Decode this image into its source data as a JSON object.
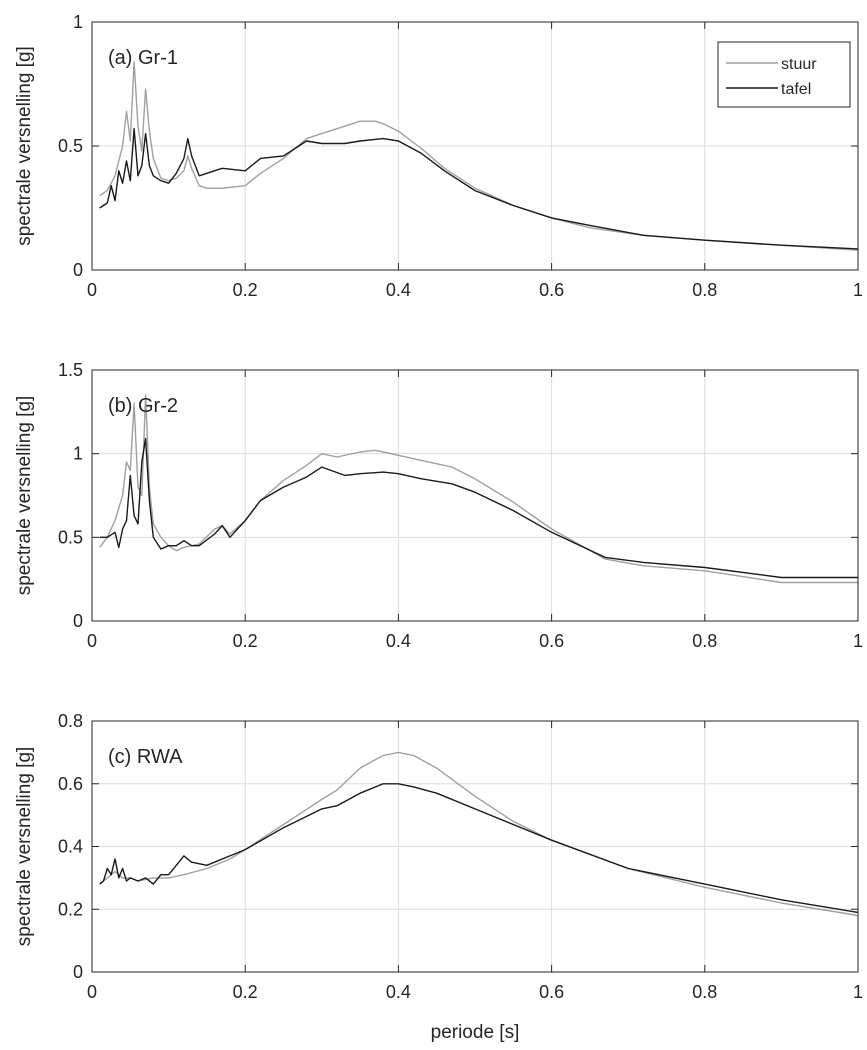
{
  "figure": {
    "xlabel": "periode [s]",
    "legend_entries": [
      "stuur",
      "tafel"
    ]
  },
  "colors": {
    "stuur": "#a0a0a0",
    "tafel": "#1a1a1a",
    "axes": "#262626",
    "grid": "#dcdcdc"
  },
  "chart_data": [
    {
      "type": "line",
      "annotation": "(a) Gr-1",
      "xlabel": "",
      "ylabel": "spectrale versnelling [g]",
      "xlim": [
        0,
        1
      ],
      "ylim": [
        0,
        1
      ],
      "xticks": [
        0,
        0.2,
        0.4,
        0.6,
        0.8,
        1
      ],
      "xtick_labels": [
        "0",
        "0.2",
        "0.4",
        "0.6",
        "0.8",
        "1"
      ],
      "yticks": [
        0,
        0.5,
        1
      ],
      "ytick_labels": [
        "0",
        "0.5",
        "1"
      ],
      "grid": true,
      "legend": "top-right",
      "series": [
        {
          "name": "stuur",
          "x": [
            0.01,
            0.02,
            0.03,
            0.04,
            0.045,
            0.05,
            0.055,
            0.06,
            0.065,
            0.07,
            0.075,
            0.08,
            0.09,
            0.1,
            0.11,
            0.12,
            0.125,
            0.13,
            0.14,
            0.15,
            0.17,
            0.2,
            0.22,
            0.25,
            0.28,
            0.3,
            0.33,
            0.35,
            0.37,
            0.38,
            0.4,
            0.43,
            0.46,
            0.5,
            0.55,
            0.6,
            0.65,
            0.72,
            0.8,
            0.9,
            1.0
          ],
          "y": [
            0.3,
            0.32,
            0.38,
            0.5,
            0.64,
            0.52,
            0.84,
            0.58,
            0.48,
            0.73,
            0.56,
            0.45,
            0.37,
            0.36,
            0.37,
            0.4,
            0.46,
            0.41,
            0.34,
            0.33,
            0.33,
            0.34,
            0.39,
            0.45,
            0.53,
            0.55,
            0.58,
            0.6,
            0.6,
            0.59,
            0.56,
            0.49,
            0.41,
            0.33,
            0.26,
            0.21,
            0.17,
            0.14,
            0.12,
            0.1,
            0.08
          ]
        },
        {
          "name": "tafel",
          "x": [
            0.01,
            0.02,
            0.025,
            0.03,
            0.035,
            0.04,
            0.045,
            0.05,
            0.055,
            0.06,
            0.065,
            0.07,
            0.075,
            0.08,
            0.09,
            0.1,
            0.11,
            0.12,
            0.125,
            0.13,
            0.14,
            0.15,
            0.17,
            0.2,
            0.22,
            0.25,
            0.28,
            0.3,
            0.33,
            0.35,
            0.38,
            0.4,
            0.43,
            0.46,
            0.5,
            0.55,
            0.6,
            0.65,
            0.72,
            0.8,
            0.9,
            1.0
          ],
          "y": [
            0.25,
            0.27,
            0.34,
            0.28,
            0.4,
            0.35,
            0.44,
            0.36,
            0.57,
            0.38,
            0.42,
            0.55,
            0.42,
            0.38,
            0.36,
            0.35,
            0.39,
            0.45,
            0.53,
            0.46,
            0.38,
            0.39,
            0.41,
            0.4,
            0.45,
            0.46,
            0.52,
            0.51,
            0.51,
            0.52,
            0.53,
            0.52,
            0.47,
            0.4,
            0.32,
            0.26,
            0.21,
            0.18,
            0.14,
            0.12,
            0.1,
            0.085
          ]
        }
      ]
    },
    {
      "type": "line",
      "annotation": "(b) Gr-2",
      "xlabel": "",
      "ylabel": "spectrale versnelling [g]",
      "xlim": [
        0,
        1
      ],
      "ylim": [
        0,
        1.5
      ],
      "xticks": [
        0,
        0.2,
        0.4,
        0.6,
        0.8,
        1
      ],
      "xtick_labels": [
        "0",
        "0.2",
        "0.4",
        "0.6",
        "0.8",
        "1"
      ],
      "yticks": [
        0,
        0.5,
        1,
        1.5
      ],
      "ytick_labels": [
        "0",
        "0.5",
        "1",
        "1.5"
      ],
      "grid": true,
      "series": [
        {
          "name": "stuur",
          "x": [
            0.01,
            0.02,
            0.03,
            0.04,
            0.045,
            0.05,
            0.055,
            0.06,
            0.065,
            0.07,
            0.075,
            0.08,
            0.09,
            0.1,
            0.11,
            0.12,
            0.14,
            0.16,
            0.17,
            0.18,
            0.2,
            0.22,
            0.25,
            0.28,
            0.3,
            0.32,
            0.35,
            0.37,
            0.4,
            0.43,
            0.47,
            0.5,
            0.55,
            0.6,
            0.67,
            0.72,
            0.8,
            0.9,
            1.0
          ],
          "y": [
            0.44,
            0.5,
            0.6,
            0.75,
            0.95,
            0.9,
            1.3,
            0.8,
            0.75,
            1.35,
            0.8,
            0.58,
            0.5,
            0.45,
            0.42,
            0.44,
            0.46,
            0.55,
            0.57,
            0.52,
            0.6,
            0.72,
            0.84,
            0.93,
            1.0,
            0.98,
            1.01,
            1.02,
            0.99,
            0.96,
            0.92,
            0.85,
            0.71,
            0.55,
            0.37,
            0.33,
            0.3,
            0.23,
            0.23
          ]
        },
        {
          "name": "tafel",
          "x": [
            0.01,
            0.02,
            0.03,
            0.035,
            0.04,
            0.045,
            0.05,
            0.055,
            0.06,
            0.065,
            0.07,
            0.075,
            0.08,
            0.09,
            0.1,
            0.11,
            0.12,
            0.13,
            0.14,
            0.16,
            0.17,
            0.18,
            0.2,
            0.22,
            0.25,
            0.28,
            0.3,
            0.33,
            0.35,
            0.38,
            0.4,
            0.43,
            0.47,
            0.5,
            0.55,
            0.6,
            0.67,
            0.72,
            0.8,
            0.9,
            1.0
          ],
          "y": [
            0.5,
            0.5,
            0.53,
            0.44,
            0.55,
            0.6,
            0.87,
            0.63,
            0.58,
            0.95,
            1.09,
            0.72,
            0.5,
            0.43,
            0.45,
            0.45,
            0.48,
            0.45,
            0.45,
            0.52,
            0.57,
            0.5,
            0.6,
            0.72,
            0.8,
            0.86,
            0.92,
            0.87,
            0.88,
            0.89,
            0.88,
            0.85,
            0.82,
            0.77,
            0.66,
            0.53,
            0.38,
            0.35,
            0.32,
            0.26,
            0.26
          ]
        }
      ]
    },
    {
      "type": "line",
      "annotation": "(c) RWA",
      "xlabel": "periode [s]",
      "ylabel": "spectrale versnelling [g]",
      "xlim": [
        0,
        1
      ],
      "ylim": [
        0,
        0.8
      ],
      "xticks": [
        0,
        0.2,
        0.4,
        0.6,
        0.8,
        1
      ],
      "xtick_labels": [
        "0",
        "0.2",
        "0.4",
        "0.6",
        "0.8",
        "1"
      ],
      "yticks": [
        0,
        0.2,
        0.4,
        0.6,
        0.8
      ],
      "ytick_labels": [
        "0",
        "0.2",
        "0.4",
        "0.6",
        "0.8"
      ],
      "grid": true,
      "series": [
        {
          "name": "stuur",
          "x": [
            0.01,
            0.02,
            0.03,
            0.04,
            0.05,
            0.06,
            0.08,
            0.1,
            0.12,
            0.15,
            0.18,
            0.2,
            0.25,
            0.3,
            0.32,
            0.35,
            0.38,
            0.4,
            0.42,
            0.45,
            0.5,
            0.55,
            0.6,
            0.7,
            0.8,
            0.9,
            1.0
          ],
          "y": [
            0.28,
            0.3,
            0.32,
            0.3,
            0.3,
            0.29,
            0.3,
            0.3,
            0.31,
            0.33,
            0.36,
            0.39,
            0.47,
            0.55,
            0.58,
            0.65,
            0.69,
            0.7,
            0.69,
            0.65,
            0.56,
            0.48,
            0.42,
            0.33,
            0.27,
            0.22,
            0.18
          ]
        },
        {
          "name": "tafel",
          "x": [
            0.01,
            0.015,
            0.02,
            0.025,
            0.03,
            0.035,
            0.04,
            0.045,
            0.05,
            0.06,
            0.07,
            0.08,
            0.09,
            0.1,
            0.11,
            0.12,
            0.13,
            0.15,
            0.18,
            0.2,
            0.25,
            0.3,
            0.32,
            0.35,
            0.38,
            0.4,
            0.42,
            0.45,
            0.5,
            0.55,
            0.6,
            0.7,
            0.8,
            0.9,
            1.0
          ],
          "y": [
            0.28,
            0.29,
            0.33,
            0.31,
            0.36,
            0.3,
            0.33,
            0.29,
            0.3,
            0.29,
            0.3,
            0.28,
            0.31,
            0.31,
            0.34,
            0.37,
            0.35,
            0.34,
            0.37,
            0.39,
            0.46,
            0.52,
            0.53,
            0.57,
            0.6,
            0.6,
            0.59,
            0.57,
            0.52,
            0.47,
            0.42,
            0.33,
            0.28,
            0.23,
            0.19
          ]
        }
      ]
    }
  ]
}
